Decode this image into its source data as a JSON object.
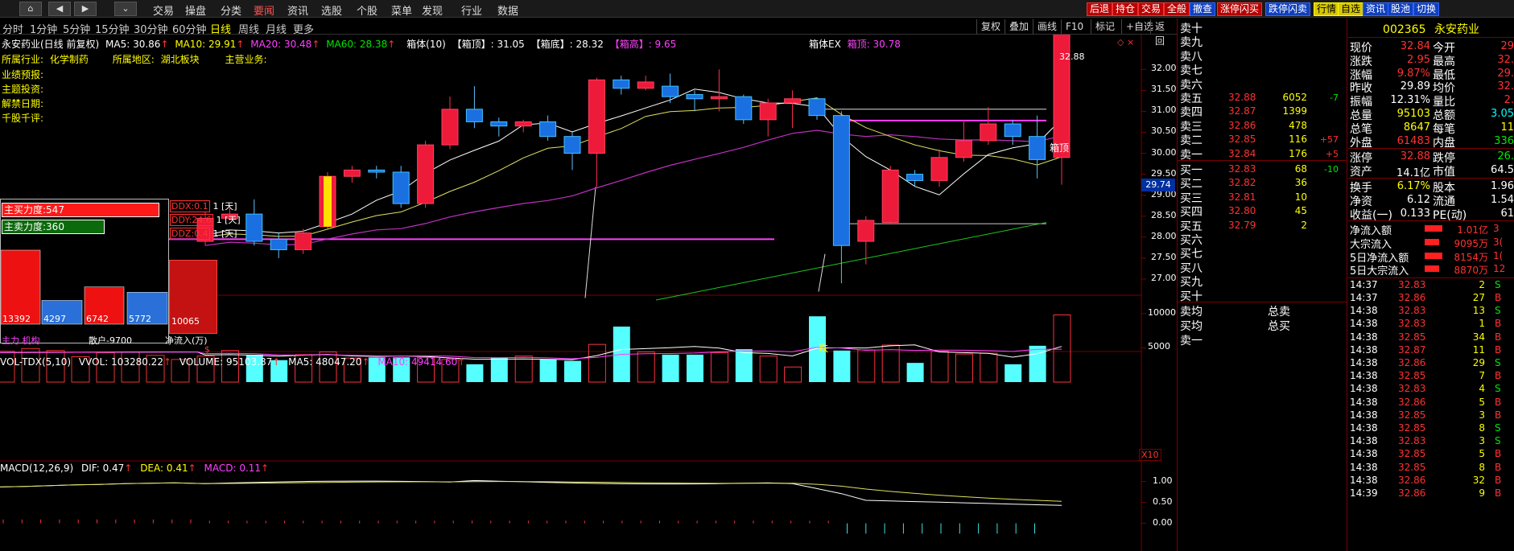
{
  "menu": {
    "items": [
      "交易",
      "操盘",
      "分类",
      "要闻",
      "资讯",
      "选股",
      "个股",
      "菜单",
      "发现",
      "行业",
      "数据"
    ],
    "active": 3
  },
  "toolbar": [
    {
      "label": "后退",
      "style": "red"
    },
    {
      "label": "持仓",
      "style": "red"
    },
    {
      "label": "交易",
      "style": "red"
    },
    {
      "label": "全般",
      "style": "red"
    },
    {
      "label": "撤查",
      "style": "blue"
    },
    {
      "label": "涨停闪买",
      "style": "red"
    },
    {
      "label": "跌停闪卖",
      "style": "blue"
    },
    {
      "label": "行情",
      "style": "yel"
    },
    {
      "label": "自选",
      "style": "yel"
    },
    {
      "label": "资讯",
      "style": "blue"
    },
    {
      "label": "股池",
      "style": "blue"
    },
    {
      "label": "切换",
      "style": "blue"
    }
  ],
  "periods": {
    "items": [
      "分时",
      "1分钟",
      "5分钟",
      "15分钟",
      "30分钟",
      "60分钟",
      "日线",
      "周线",
      "月线",
      "更多"
    ],
    "active": 6
  },
  "chart_buttons": [
    "复权",
    "叠加",
    "画线",
    "F10",
    "标记",
    "+自选",
    "返回"
  ],
  "info": {
    "title": "永安药业(日线 前复权)",
    "ma5": "MA5: 30.86",
    "ma10": "MA10: 29.91",
    "ma20": "MA20: 30.48",
    "ma60": "MA60: 28.38",
    "box": "箱体(10)",
    "box_top": "【箱顶】: 31.05",
    "box_bottom": "【箱底】: 28.32",
    "box_high": "【箱高】: 9.65",
    "boxex_label": "箱体EX",
    "boxex_top": "箱顶: 30.78",
    "industry_label": "所属行业:",
    "industry": "化学制药",
    "region_label": "所属地区:",
    "region": "湖北板块",
    "business_label": "主营业务:",
    "extra_labels": [
      "业绩预报:",
      "主题投资:",
      "解禁日期:",
      "千股千评:"
    ]
  },
  "price_labels": {
    "hi": "32.88",
    "box_top": "箱顶",
    "current": "29.74",
    "die": "跌",
    "s": "$"
  },
  "price_axis": [
    "32.00",
    "31.50",
    "31.00",
    "30.50",
    "30.00",
    "29.50",
    "29.00",
    "28.50",
    "28.00",
    "27.50",
    "27.00"
  ],
  "ddx": {
    "buy_force": "主买力度:547",
    "sell_force": "主卖力度:360",
    "ddx": "DDX:0.1",
    "ddx_day": "1 [天]",
    "ddy": "DDY:24.6",
    "ddy_day": "1 [天]",
    "ddz": "DDZ:0.4",
    "ddz_day": "1 [天]",
    "bars": [
      {
        "label": "13392",
        "value": 13392,
        "color": "#ee1111"
      },
      {
        "label": "4297",
        "value": 4297,
        "color": "#2b70d8"
      },
      {
        "label": "6742",
        "value": 6742,
        "color": "#ee1111"
      },
      {
        "label": "5772",
        "value": 5772,
        "color": "#2b70d8"
      },
      {
        "label": "10065",
        "value": 10065,
        "color": "#cc1111"
      }
    ],
    "bottom_left": "主力 机构",
    "bottom_mid": "散户-9700",
    "bottom_right": "净流入(万)"
  },
  "volume": {
    "header": "VOL-TDX(5,10)",
    "vvol": "VVOL: 103280.22",
    "volume": "VOLUME: 95103.87",
    "ma5": "MA5: 48047.20",
    "ma10": "MA10: 49414.60",
    "axis": [
      "10000",
      "5000"
    ],
    "unit": "X10"
  },
  "macd": {
    "header": "MACD(12,26,9)",
    "dif": "DIF: 0.47",
    "dea": "DEA: 0.41",
    "macd": "MACD: 0.11",
    "axis": [
      "1.00",
      "0.50",
      "0.00"
    ]
  },
  "chart_data": {
    "type": "candlestick",
    "axis_range": [
      26.5,
      32.6
    ],
    "candles": [
      {
        "o": 27.9,
        "c": 28.45,
        "h": 28.6,
        "l": 27.8
      },
      {
        "o": 28.45,
        "c": 28.55,
        "h": 28.7,
        "l": 28.4
      },
      {
        "o": 28.55,
        "c": 27.9,
        "h": 28.9,
        "l": 27.8
      },
      {
        "o": 27.95,
        "c": 27.7,
        "h": 28.1,
        "l": 27.5
      },
      {
        "o": 27.7,
        "c": 28.1,
        "h": 28.2,
        "l": 27.6
      },
      {
        "o": 28.25,
        "c": 29.45,
        "h": 29.55,
        "l": 28.2
      },
      {
        "o": 29.45,
        "c": 29.6,
        "h": 29.7,
        "l": 29.3
      },
      {
        "o": 29.6,
        "c": 29.55,
        "h": 29.7,
        "l": 29.4
      },
      {
        "o": 29.55,
        "c": 28.8,
        "h": 29.7,
        "l": 28.7
      },
      {
        "o": 28.8,
        "c": 30.2,
        "h": 30.3,
        "l": 28.7
      },
      {
        "o": 30.2,
        "c": 31.05,
        "h": 31.35,
        "l": 30.1
      },
      {
        "o": 31.05,
        "c": 30.75,
        "h": 31.6,
        "l": 30.6
      },
      {
        "o": 30.75,
        "c": 30.65,
        "h": 30.85,
        "l": 30.4
      },
      {
        "o": 30.65,
        "c": 30.75,
        "h": 30.8,
        "l": 30.5
      },
      {
        "o": 30.75,
        "c": 30.4,
        "h": 30.9,
        "l": 30.3
      },
      {
        "o": 30.4,
        "c": 30.0,
        "h": 30.5,
        "l": 29.6
      },
      {
        "o": 30.0,
        "c": 31.75,
        "h": 31.8,
        "l": 29.2
      },
      {
        "o": 31.75,
        "c": 31.55,
        "h": 31.85,
        "l": 31.4
      },
      {
        "o": 31.55,
        "c": 31.7,
        "h": 31.85,
        "l": 31.5
      },
      {
        "o": 31.6,
        "c": 31.35,
        "h": 31.9,
        "l": 31.2
      },
      {
        "o": 31.4,
        "c": 31.3,
        "h": 31.5,
        "l": 31.0
      },
      {
        "o": 31.3,
        "c": 31.35,
        "h": 32.0,
        "l": 31.0
      },
      {
        "o": 31.35,
        "c": 30.8,
        "h": 31.4,
        "l": 30.7
      },
      {
        "o": 30.8,
        "c": 31.2,
        "h": 31.3,
        "l": 30.4
      },
      {
        "o": 31.2,
        "c": 31.3,
        "h": 31.5,
        "l": 30.6
      },
      {
        "o": 31.3,
        "c": 30.9,
        "h": 31.3,
        "l": 30.8
      },
      {
        "o": 30.9,
        "c": 27.8,
        "h": 31.0,
        "l": 26.9
      },
      {
        "o": 27.9,
        "c": 28.4,
        "h": 28.5,
        "l": 27.35
      },
      {
        "o": 28.35,
        "c": 29.6,
        "h": 29.7,
        "l": 28.3
      },
      {
        "o": 29.5,
        "c": 29.35,
        "h": 29.6,
        "l": 29.2
      },
      {
        "o": 29.35,
        "c": 29.9,
        "h": 30.1,
        "l": 29.2
      },
      {
        "o": 29.9,
        "c": 30.3,
        "h": 30.8,
        "l": 29.8
      },
      {
        "o": 30.3,
        "c": 30.7,
        "h": 31.1,
        "l": 30.2
      },
      {
        "o": 30.7,
        "c": 30.4,
        "h": 30.8,
        "l": 30.2
      },
      {
        "o": 30.4,
        "c": 29.85,
        "h": 30.9,
        "l": 29.4
      },
      {
        "o": 29.9,
        "c": 32.84,
        "h": 32.88,
        "l": 29.25
      }
    ],
    "volumes": [
      3800,
      4600,
      4000,
      3200,
      4000,
      4400,
      3500,
      3600,
      3600,
      3600,
      3300,
      2600,
      3600,
      3800,
      3300,
      3100,
      5500,
      8100,
      4400,
      4000,
      4000,
      4300,
      4800,
      3800,
      2200,
      9600,
      4600,
      4700,
      5400,
      2800,
      4500,
      4100,
      4200,
      2600,
      5300,
      9800
    ]
  },
  "orderbook": {
    "sell": [
      {
        "label": "卖十",
        "price": "",
        "vol": "",
        "chg": ""
      },
      {
        "label": "卖九",
        "price": "",
        "vol": "",
        "chg": ""
      },
      {
        "label": "卖八",
        "price": "",
        "vol": "",
        "chg": ""
      },
      {
        "label": "卖七",
        "price": "",
        "vol": "",
        "chg": ""
      },
      {
        "label": "卖六",
        "price": "",
        "vol": "",
        "chg": ""
      },
      {
        "label": "卖五",
        "price": "32.88",
        "vol": "6052",
        "chg": "-7"
      },
      {
        "label": "卖四",
        "price": "32.87",
        "vol": "1399",
        "chg": ""
      },
      {
        "label": "卖三",
        "price": "32.86",
        "vol": "478",
        "chg": ""
      },
      {
        "label": "卖二",
        "price": "32.85",
        "vol": "116",
        "chg": "+57"
      },
      {
        "label": "卖一",
        "price": "32.84",
        "vol": "176",
        "chg": "+5"
      }
    ],
    "buy": [
      {
        "label": "买一",
        "price": "32.83",
        "vol": "68",
        "chg": "-10"
      },
      {
        "label": "买二",
        "price": "32.82",
        "vol": "36",
        "chg": ""
      },
      {
        "label": "买三",
        "price": "32.81",
        "vol": "10",
        "chg": ""
      },
      {
        "label": "买四",
        "price": "32.80",
        "vol": "45",
        "chg": ""
      },
      {
        "label": "买五",
        "price": "32.79",
        "vol": "2",
        "chg": ""
      },
      {
        "label": "买六",
        "price": "",
        "vol": "",
        "chg": ""
      },
      {
        "label": "买七",
        "price": "",
        "vol": "",
        "chg": ""
      },
      {
        "label": "买八",
        "price": "",
        "vol": "",
        "chg": ""
      },
      {
        "label": "买九",
        "price": "",
        "vol": "",
        "chg": ""
      },
      {
        "label": "买十",
        "price": "",
        "vol": "",
        "chg": ""
      }
    ],
    "footer": [
      {
        "l": "卖均",
        "r": "总卖"
      },
      {
        "l": "买均",
        "r": "总买"
      },
      {
        "l": "卖一",
        "r": ""
      }
    ]
  },
  "quote": {
    "code": "002365",
    "name": "永安药业",
    "rows": [
      {
        "l1": "现价",
        "v1": "32.84",
        "c1": "red",
        "l2": "今开",
        "v2": "29",
        "c2": "red"
      },
      {
        "l1": "涨跌",
        "v1": "2.95",
        "c1": "red",
        "l2": "最高",
        "v2": "32.",
        "c2": "red"
      },
      {
        "l1": "涨幅",
        "v1": "9.87%",
        "c1": "red",
        "l2": "最低",
        "v2": "29.",
        "c2": "red"
      },
      {
        "l1": "昨收",
        "v1": "29.89",
        "c1": "wht",
        "l2": "均价",
        "v2": "32.",
        "c2": "red"
      },
      {
        "l1": "振幅",
        "v1": "12.31%",
        "c1": "wht",
        "l2": "量比",
        "v2": "2.",
        "c2": "red"
      },
      {
        "l1": "总量",
        "v1": "95103",
        "c1": "yel2",
        "l2": "总额",
        "v2": "3.05",
        "c2": "cy"
      },
      {
        "l1": "总笔",
        "v1": "8647",
        "c1": "yel2",
        "l2": "每笔",
        "v2": "11",
        "c2": "yel2"
      },
      {
        "l1": "外盘",
        "v1": "61483",
        "c1": "red",
        "l2": "内盘",
        "v2": "336",
        "c2": "grn"
      }
    ],
    "rows2": [
      {
        "l1": "涨停",
        "v1": "32.88",
        "c1": "red",
        "l2": "跌停",
        "v2": "26.",
        "c2": "grn"
      },
      {
        "l1": "资产",
        "v1": "14.1亿",
        "c1": "wht",
        "l2": "市值",
        "v2": "64.5",
        "c2": "wht"
      }
    ],
    "rows3": [
      {
        "l1": "换手",
        "v1": "6.17%",
        "c1": "yel2",
        "l2": "股本",
        "v2": "1.96",
        "c2": "wht"
      },
      {
        "l1": "净资",
        "v1": "6.12",
        "c1": "wht",
        "l2": "流通",
        "v2": "1.54",
        "c2": "wht"
      },
      {
        "l1": "收益(一)",
        "v1": "0.133",
        "c1": "wht",
        "l2": "PE(动)",
        "v2": "61",
        "c2": "wht"
      }
    ],
    "flows": [
      {
        "label": "净流入额",
        "value": "1.01亿",
        "extra": "3"
      },
      {
        "label": "大宗流入",
        "value": "9095万",
        "extra": "3("
      },
      {
        "label": "5日净流入额",
        "value": "8154万",
        "extra": "1("
      },
      {
        "label": "5日大宗流入",
        "value": "8870万",
        "extra": "12"
      }
    ]
  },
  "ticks": [
    {
      "t": "14:37",
      "p": "32.83",
      "v": "2",
      "s": "S"
    },
    {
      "t": "14:37",
      "p": "32.86",
      "v": "27",
      "s": "B"
    },
    {
      "t": "14:38",
      "p": "32.83",
      "v": "13",
      "s": "S"
    },
    {
      "t": "14:38",
      "p": "32.83",
      "v": "1",
      "s": "B"
    },
    {
      "t": "14:38",
      "p": "32.85",
      "v": "34",
      "s": "B"
    },
    {
      "t": "14:38",
      "p": "32.87",
      "v": "11",
      "s": "B"
    },
    {
      "t": "14:38",
      "p": "32.86",
      "v": "29",
      "s": "S"
    },
    {
      "t": "14:38",
      "p": "32.85",
      "v": "7",
      "s": "B"
    },
    {
      "t": "14:38",
      "p": "32.83",
      "v": "4",
      "s": "S"
    },
    {
      "t": "14:38",
      "p": "32.86",
      "v": "5",
      "s": "B"
    },
    {
      "t": "14:38",
      "p": "32.85",
      "v": "3",
      "s": "B"
    },
    {
      "t": "14:38",
      "p": "32.85",
      "v": "8",
      "s": "S"
    },
    {
      "t": "14:38",
      "p": "32.83",
      "v": "3",
      "s": "S"
    },
    {
      "t": "14:38",
      "p": "32.85",
      "v": "5",
      "s": "B"
    },
    {
      "t": "14:38",
      "p": "32.85",
      "v": "8",
      "s": "B"
    },
    {
      "t": "14:38",
      "p": "32.86",
      "v": "32",
      "s": "B"
    },
    {
      "t": "14:39",
      "p": "32.86",
      "v": "9",
      "s": "B"
    }
  ]
}
